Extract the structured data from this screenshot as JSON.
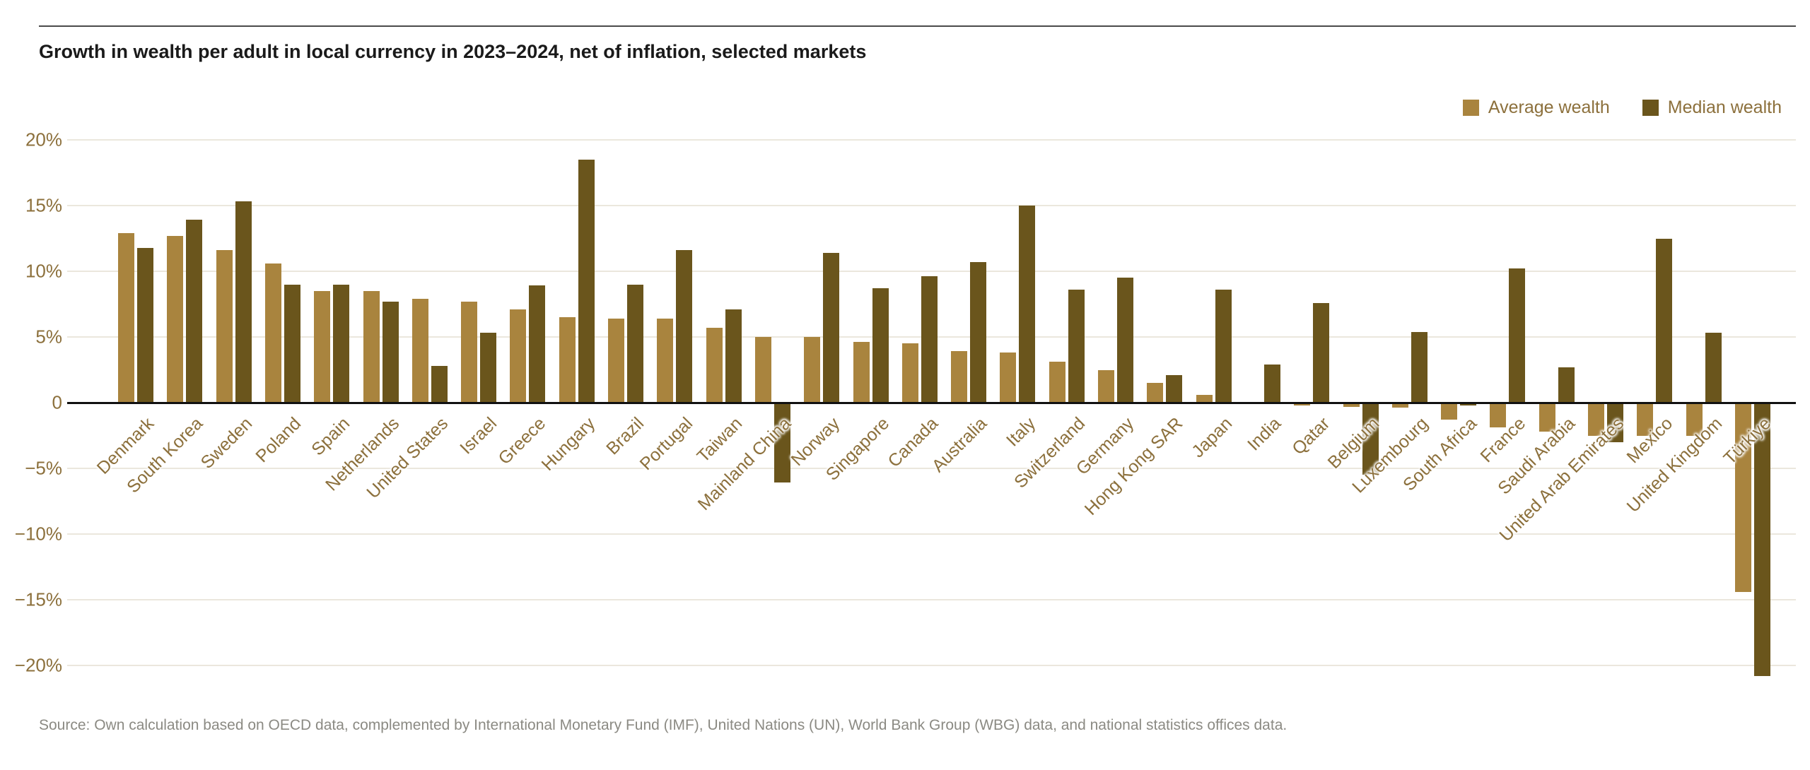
{
  "header": {
    "title": "Growth in wealth per adult in local currency in 2023–2024, net of inflation, selected markets"
  },
  "legend": {
    "average": {
      "label": "Average wealth",
      "color": "#a9843e"
    },
    "median": {
      "label": "Median wealth",
      "color": "#6a551c"
    }
  },
  "chart_data": {
    "type": "bar",
    "title": "Growth in wealth per adult in local currency in 2023–2024, net of inflation, selected markets",
    "categories": [
      "Denmark",
      "South Korea",
      "Sweden",
      "Poland",
      "Spain",
      "Netherlands",
      "United States",
      "Israel",
      "Greece",
      "Hungary",
      "Brazil",
      "Portugal",
      "Taiwan",
      "Mainland China",
      "Norway",
      "Singapore",
      "Canada",
      "Australia",
      "Italy",
      "Switzerland",
      "Germany",
      "Hong Kong SAR",
      "Japan",
      "India",
      "Qatar",
      "Belgium",
      "Luxembourg",
      "South Africa",
      "France",
      "Saudi Arabia",
      "United Arab Emirates",
      "Mexico",
      "United Kingdom",
      "Türkiye"
    ],
    "series": [
      {
        "name": "Average wealth",
        "key": "average",
        "color": "#a9843e",
        "values": [
          12.9,
          12.7,
          11.6,
          10.6,
          8.5,
          8.5,
          7.9,
          7.7,
          7.1,
          6.5,
          6.4,
          6.4,
          5.7,
          5.0,
          5.0,
          4.6,
          4.5,
          3.9,
          3.8,
          3.1,
          2.5,
          1.5,
          0.6,
          -0.1,
          -0.2,
          -0.3,
          -0.4,
          -1.3,
          -1.9,
          -2.2,
          -2.5,
          -2.5,
          -2.5,
          -14.4
        ]
      },
      {
        "name": "Median wealth",
        "key": "median",
        "color": "#6a551c",
        "values": [
          11.8,
          13.9,
          15.3,
          9.0,
          9.0,
          7.7,
          2.8,
          5.3,
          8.9,
          18.5,
          9.0,
          11.6,
          7.1,
          -6.1,
          11.4,
          8.7,
          9.6,
          10.7,
          15.0,
          8.6,
          9.5,
          2.1,
          8.6,
          2.9,
          7.6,
          -5.5,
          5.4,
          -0.2,
          10.2,
          2.7,
          -3.0,
          12.5,
          5.3,
          -20.8
        ]
      }
    ],
    "y_ticks": [
      {
        "label": "20%",
        "value": 20
      },
      {
        "label": "15%",
        "value": 15
      },
      {
        "label": "10%",
        "value": 10
      },
      {
        "label": "5%",
        "value": 5
      },
      {
        "label": "0",
        "value": 0
      },
      {
        "label": "−5%",
        "value": -5
      },
      {
        "label": "−10%",
        "value": -10
      },
      {
        "label": "−15%",
        "value": -15
      },
      {
        "label": "−20%",
        "value": -20
      }
    ],
    "ylim": [
      -22,
      20
    ],
    "grid": true,
    "legend_position": "top-right",
    "xlabel": "",
    "ylabel": ""
  },
  "footer": {
    "source": "Source: Own calculation based on OECD data, complemented by International Monetary Fund (IMF), United Nations (UN), World Bank Group (WBG) data, and national statistics offices data."
  }
}
